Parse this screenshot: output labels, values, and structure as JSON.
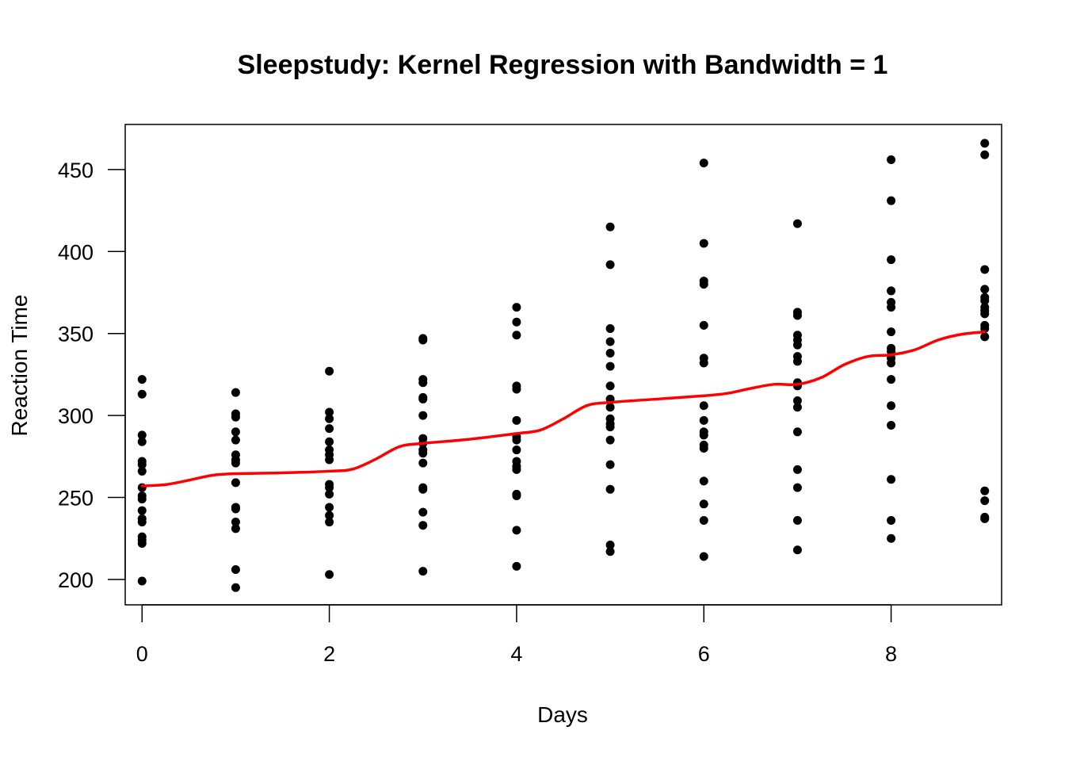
{
  "chart_data": {
    "type": "scatter",
    "title": "Sleepstudy: Kernel Regression with Bandwidth = 1",
    "xlabel": "Days",
    "ylabel": "Reaction Time",
    "xlim": [
      -0.18,
      9.18
    ],
    "ylim": [
      184.5,
      477.5
    ],
    "xticks": [
      0,
      2,
      4,
      6,
      8
    ],
    "yticks": [
      200,
      250,
      300,
      350,
      400,
      450
    ],
    "grid": false,
    "legend": "none",
    "point_color": "#000000",
    "line_color": "#ff0000",
    "points": [
      [
        0,
        322
      ],
      [
        0,
        313
      ],
      [
        0,
        288
      ],
      [
        0,
        284
      ],
      [
        0,
        272
      ],
      [
        0,
        270
      ],
      [
        0,
        266
      ],
      [
        0,
        256
      ],
      [
        0,
        251
      ],
      [
        0,
        249
      ],
      [
        0,
        242
      ],
      [
        0,
        237
      ],
      [
        0,
        235
      ],
      [
        0,
        226
      ],
      [
        0,
        224
      ],
      [
        0,
        222
      ],
      [
        0,
        199
      ],
      [
        1,
        314
      ],
      [
        1,
        301
      ],
      [
        1,
        299
      ],
      [
        1,
        290
      ],
      [
        1,
        285
      ],
      [
        1,
        276
      ],
      [
        1,
        273
      ],
      [
        1,
        271
      ],
      [
        1,
        259
      ],
      [
        1,
        244
      ],
      [
        1,
        243
      ],
      [
        1,
        235
      ],
      [
        1,
        231
      ],
      [
        1,
        206
      ],
      [
        1,
        195
      ],
      [
        2,
        327
      ],
      [
        2,
        302
      ],
      [
        2,
        298
      ],
      [
        2,
        292
      ],
      [
        2,
        284
      ],
      [
        2,
        279
      ],
      [
        2,
        276
      ],
      [
        2,
        273
      ],
      [
        2,
        258
      ],
      [
        2,
        256
      ],
      [
        2,
        252
      ],
      [
        2,
        244
      ],
      [
        2,
        239
      ],
      [
        2,
        235
      ],
      [
        2,
        203
      ],
      [
        3,
        347
      ],
      [
        3,
        346
      ],
      [
        3,
        322
      ],
      [
        3,
        320
      ],
      [
        3,
        311
      ],
      [
        3,
        310
      ],
      [
        3,
        300
      ],
      [
        3,
        286
      ],
      [
        3,
        283
      ],
      [
        3,
        279
      ],
      [
        3,
        277
      ],
      [
        3,
        271
      ],
      [
        3,
        256
      ],
      [
        3,
        255
      ],
      [
        3,
        241
      ],
      [
        3,
        233
      ],
      [
        3,
        205
      ],
      [
        4,
        366
      ],
      [
        4,
        357
      ],
      [
        4,
        349
      ],
      [
        4,
        318
      ],
      [
        4,
        316
      ],
      [
        4,
        297
      ],
      [
        4,
        287
      ],
      [
        4,
        285
      ],
      [
        4,
        279
      ],
      [
        4,
        272
      ],
      [
        4,
        269
      ],
      [
        4,
        267
      ],
      [
        4,
        252
      ],
      [
        4,
        251
      ],
      [
        4,
        230
      ],
      [
        4,
        208
      ],
      [
        5,
        415
      ],
      [
        5,
        392
      ],
      [
        5,
        353
      ],
      [
        5,
        345
      ],
      [
        5,
        338
      ],
      [
        5,
        330
      ],
      [
        5,
        318
      ],
      [
        5,
        310
      ],
      [
        5,
        305
      ],
      [
        5,
        298
      ],
      [
        5,
        295
      ],
      [
        5,
        293
      ],
      [
        5,
        285
      ],
      [
        5,
        270
      ],
      [
        5,
        255
      ],
      [
        5,
        221
      ],
      [
        5,
        217
      ],
      [
        6,
        454
      ],
      [
        6,
        405
      ],
      [
        6,
        382
      ],
      [
        6,
        380
      ],
      [
        6,
        355
      ],
      [
        6,
        335
      ],
      [
        6,
        332
      ],
      [
        6,
        306
      ],
      [
        6,
        297
      ],
      [
        6,
        290
      ],
      [
        6,
        288
      ],
      [
        6,
        282
      ],
      [
        6,
        280
      ],
      [
        6,
        260
      ],
      [
        6,
        246
      ],
      [
        6,
        236
      ],
      [
        6,
        214
      ],
      [
        7,
        417
      ],
      [
        7,
        363
      ],
      [
        7,
        361
      ],
      [
        7,
        349
      ],
      [
        7,
        346
      ],
      [
        7,
        343
      ],
      [
        7,
        336
      ],
      [
        7,
        333
      ],
      [
        7,
        320
      ],
      [
        7,
        318
      ],
      [
        7,
        309
      ],
      [
        7,
        305
      ],
      [
        7,
        290
      ],
      [
        7,
        267
      ],
      [
        7,
        256
      ],
      [
        7,
        236
      ],
      [
        7,
        218
      ],
      [
        8,
        456
      ],
      [
        8,
        431
      ],
      [
        8,
        395
      ],
      [
        8,
        376
      ],
      [
        8,
        369
      ],
      [
        8,
        366
      ],
      [
        8,
        351
      ],
      [
        8,
        341
      ],
      [
        8,
        339
      ],
      [
        8,
        335
      ],
      [
        8,
        332
      ],
      [
        8,
        322
      ],
      [
        8,
        306
      ],
      [
        8,
        294
      ],
      [
        8,
        261
      ],
      [
        8,
        236
      ],
      [
        8,
        225
      ],
      [
        9,
        466
      ],
      [
        9,
        459
      ],
      [
        9,
        389
      ],
      [
        9,
        377
      ],
      [
        9,
        372
      ],
      [
        9,
        370
      ],
      [
        9,
        366
      ],
      [
        9,
        364
      ],
      [
        9,
        362
      ],
      [
        9,
        355
      ],
      [
        9,
        353
      ],
      [
        9,
        348
      ],
      [
        9,
        254
      ],
      [
        9,
        248
      ],
      [
        9,
        238
      ],
      [
        9,
        237
      ]
    ],
    "series": [
      {
        "values_x": [
          0,
          0.25,
          0.5,
          0.75,
          1,
          1.5,
          2,
          2.25,
          2.5,
          2.75,
          3,
          3.5,
          4,
          4.25,
          4.5,
          4.75,
          5,
          5.5,
          6,
          6.25,
          6.5,
          6.75,
          7,
          7.25,
          7.5,
          7.75,
          8,
          8.25,
          8.5,
          8.75,
          9
        ],
        "values_y": [
          257,
          257.8,
          260.5,
          263.5,
          264.5,
          265,
          266,
          267.3,
          273.5,
          281,
          283,
          285.5,
          289,
          291,
          298,
          306,
          308,
          310,
          312,
          313.5,
          316.5,
          319,
          319,
          323,
          331,
          336,
          337,
          340,
          346,
          349.5,
          351
        ]
      }
    ]
  }
}
